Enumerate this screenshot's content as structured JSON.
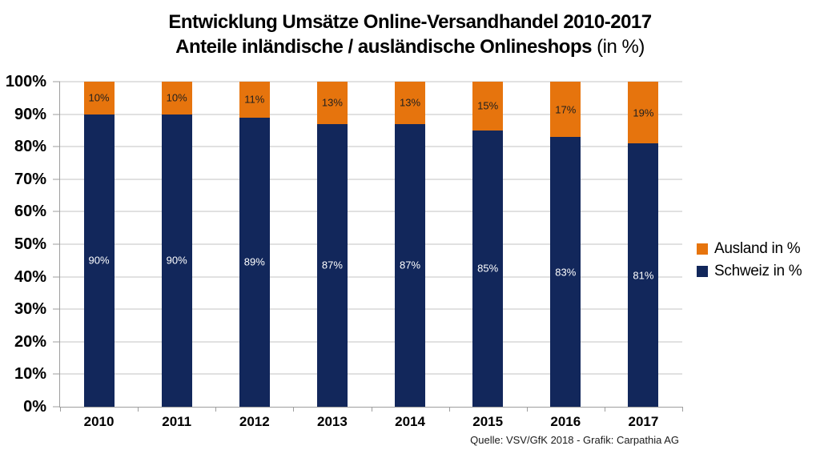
{
  "title": {
    "line1": "Entwicklung Umsätze Online-Versandhandel 2010-2017",
    "line2_bold": "Anteile inländische / ausländische Onlineshops",
    "line2_normal": " (in %)"
  },
  "source": "Quelle: VSV/GfK 2018 - Grafik: Carpathia AG",
  "colors": {
    "schweiz": "#12275b",
    "ausland": "#e6740d",
    "gridline": "#c3c3c3",
    "axis": "#9e9e9e",
    "label_on_orange": "#1f1f1f",
    "label_on_navy": "#ffffff"
  },
  "chart_data": {
    "type": "bar",
    "stacked": true,
    "title": "Entwicklung Umsätze Online-Versandhandel 2010-2017 — Anteile inländische / ausländische Onlineshops (in %)",
    "categories": [
      "2010",
      "2011",
      "2012",
      "2013",
      "2014",
      "2015",
      "2016",
      "2017"
    ],
    "series": [
      {
        "name": "Schweiz in %",
        "color_key": "schweiz",
        "label_color_key": "label_on_navy",
        "values": [
          90,
          90,
          89,
          87,
          87,
          85,
          83,
          81
        ]
      },
      {
        "name": "Ausland in %",
        "color_key": "ausland",
        "label_color_key": "label_on_orange",
        "values": [
          10,
          10,
          11,
          13,
          13,
          15,
          17,
          19
        ]
      }
    ],
    "ylim": [
      0,
      100
    ],
    "ytick_step": 10,
    "ytick_suffix": "%",
    "value_suffix": "%",
    "grid": true,
    "legend_position": "right",
    "legend_order": [
      "Ausland in %",
      "Schweiz in %"
    ]
  }
}
